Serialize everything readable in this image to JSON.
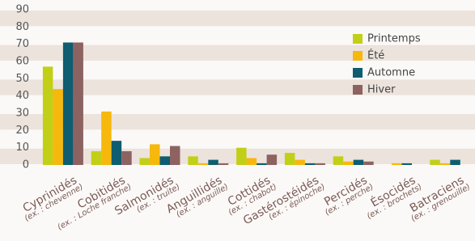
{
  "chart_data": {
    "type": "bar",
    "categories": [
      "Cyprinidés",
      "Cobitidés",
      "Salmonidés",
      "Anguillidés",
      "Cottidés",
      "Gastérostéidés",
      "Percidés",
      "Ésocidés",
      "Batraciens"
    ],
    "category_examples": [
      "(ex. : chevenne)",
      "(ex. : Loche franche)",
      "(ex. : truite)",
      "(ex. : anguille)",
      "(ex. : chabot)",
      "(ex. : épinoche)",
      "(ex. : perche)",
      "(ex. : brochets)",
      "(ex. : grenouille)"
    ],
    "series": [
      {
        "name": "Printemps",
        "color": "#c2cf17",
        "values": [
          57,
          8,
          4,
          5,
          10,
          7,
          5,
          0,
          3
        ]
      },
      {
        "name": "Été",
        "color": "#f6b80c",
        "values": [
          44,
          31,
          12,
          1,
          4,
          3,
          2,
          1,
          1
        ]
      },
      {
        "name": "Automne",
        "color": "#0e5d70",
        "values": [
          71,
          14,
          5,
          3,
          1,
          1,
          3,
          1,
          3
        ]
      },
      {
        "name": "Hiver",
        "color": "#8d6362",
        "values": [
          71,
          8,
          11,
          1,
          6,
          1,
          2,
          0,
          0
        ]
      }
    ],
    "ylim": [
      0,
      90
    ],
    "yticks": [
      0,
      10,
      20,
      30,
      40,
      50,
      60,
      70,
      80,
      90
    ],
    "bands": true,
    "band_color": "#ece3dc",
    "legend": "upper-right"
  }
}
